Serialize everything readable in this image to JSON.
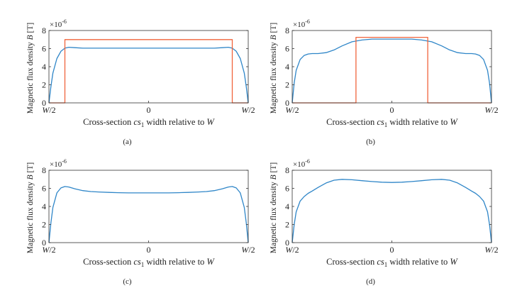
{
  "colors": {
    "blue": "#2F86C8",
    "orange": "#F0643C",
    "axis": "#333333"
  },
  "chart_data": [
    {
      "type": "line",
      "caption": "(a)",
      "ylabel": {
        "pre": "Magnetic flux density ",
        "var": "B",
        "post": " [T]"
      },
      "yscale_label": "×10",
      "yscale_exp": "-6",
      "xlabel": {
        "pre": "Cross-section ",
        "var": "cs",
        "sub": "1",
        "post": " width relative to ",
        "var2": "W"
      },
      "xticks": [
        "W/2",
        "0",
        "W/2"
      ],
      "xlim": [
        -0.5,
        0.5
      ],
      "yticks": [
        "0",
        "2",
        "4",
        "6",
        "8"
      ],
      "ylim": [
        0,
        8
      ],
      "grid": false,
      "series": [
        {
          "color": "blue",
          "x": [
            -0.5,
            -0.49,
            -0.48,
            -0.46,
            -0.44,
            -0.42,
            -0.4,
            -0.37,
            -0.33,
            -0.29,
            -0.25,
            -0.2,
            -0.15,
            -0.1,
            -0.05,
            0,
            0.05,
            0.1,
            0.15,
            0.2,
            0.25,
            0.29,
            0.33,
            0.37,
            0.4,
            0.42,
            0.44,
            0.46,
            0.48,
            0.49,
            0.5
          ],
          "y": [
            0,
            1.8,
            3.3,
            4.9,
            5.7,
            6.05,
            6.15,
            6.1,
            6.05,
            6.05,
            6.05,
            6.05,
            6.05,
            6.05,
            6.05,
            6.05,
            6.05,
            6.05,
            6.05,
            6.05,
            6.05,
            6.05,
            6.05,
            6.1,
            6.15,
            6.05,
            5.7,
            4.9,
            3.3,
            1.8,
            0
          ]
        },
        {
          "color": "orange",
          "x": [
            -0.5,
            -0.42,
            -0.42,
            0.42,
            0.42,
            0.5
          ],
          "y": [
            0,
            0,
            7,
            7,
            0,
            0
          ]
        }
      ]
    },
    {
      "type": "line",
      "caption": "(b)",
      "ylabel": {
        "pre": "Magnetic flux density ",
        "var": "B",
        "post": " [T]"
      },
      "yscale_label": "×10",
      "yscale_exp": "-6",
      "xlabel": {
        "pre": "Cross-section ",
        "var": "cs",
        "sub": "1",
        "post": " width relative to ",
        "var2": "W"
      },
      "xticks": [
        "W/2",
        "0",
        "W/2"
      ],
      "xlim": [
        -0.5,
        0.5
      ],
      "yticks": [
        "0",
        "2",
        "4",
        "6",
        "8"
      ],
      "ylim": [
        0,
        8
      ],
      "grid": false,
      "series": [
        {
          "color": "blue",
          "x": [
            -0.5,
            -0.49,
            -0.48,
            -0.46,
            -0.44,
            -0.42,
            -0.4,
            -0.37,
            -0.33,
            -0.29,
            -0.25,
            -0.2,
            -0.15,
            -0.1,
            -0.05,
            0,
            0.05,
            0.1,
            0.15,
            0.2,
            0.25,
            0.29,
            0.33,
            0.37,
            0.4,
            0.42,
            0.44,
            0.46,
            0.48,
            0.49,
            0.5
          ],
          "y": [
            0,
            2.2,
            3.6,
            4.8,
            5.25,
            5.4,
            5.45,
            5.45,
            5.55,
            5.85,
            6.3,
            6.75,
            6.95,
            7.05,
            7.05,
            7.05,
            7.05,
            7.05,
            6.95,
            6.75,
            6.3,
            5.85,
            5.55,
            5.45,
            5.45,
            5.4,
            5.25,
            4.8,
            3.6,
            2.2,
            0
          ]
        },
        {
          "color": "orange",
          "x": [
            -0.5,
            -0.18,
            -0.18,
            0.18,
            0.18,
            0.5
          ],
          "y": [
            0,
            0,
            7.25,
            7.25,
            0,
            0
          ]
        }
      ]
    },
    {
      "type": "line",
      "caption": "(c)",
      "ylabel": {
        "pre": "Magnetic flux density ",
        "var": "B",
        "post": " [T]"
      },
      "yscale_label": "×10",
      "yscale_exp": "-6",
      "xlabel": {
        "pre": "Cross-section ",
        "var": "cs",
        "sub": "1",
        "post": " width relative to ",
        "var2": "W"
      },
      "xticks": [
        "W/2",
        "0",
        "W/2"
      ],
      "xlim": [
        -0.5,
        0.5
      ],
      "yticks": [
        "0",
        "2",
        "4",
        "6",
        "8"
      ],
      "ylim": [
        0,
        8
      ],
      "grid": false,
      "series": [
        {
          "color": "blue",
          "x": [
            -0.5,
            -0.49,
            -0.48,
            -0.46,
            -0.44,
            -0.42,
            -0.4,
            -0.37,
            -0.33,
            -0.29,
            -0.25,
            -0.2,
            -0.15,
            -0.1,
            -0.05,
            0,
            0.05,
            0.1,
            0.15,
            0.2,
            0.25,
            0.29,
            0.33,
            0.37,
            0.4,
            0.42,
            0.44,
            0.46,
            0.48,
            0.49,
            0.5
          ],
          "y": [
            0,
            2.2,
            3.9,
            5.5,
            6.05,
            6.2,
            6.15,
            5.95,
            5.75,
            5.65,
            5.6,
            5.55,
            5.52,
            5.5,
            5.5,
            5.5,
            5.5,
            5.5,
            5.52,
            5.55,
            5.6,
            5.65,
            5.75,
            5.95,
            6.15,
            6.2,
            6.05,
            5.5,
            3.9,
            2.2,
            0
          ]
        }
      ]
    },
    {
      "type": "line",
      "caption": "(d)",
      "ylabel": {
        "pre": "Magnetic flux density ",
        "var": "B",
        "post": " [T]"
      },
      "yscale_label": "×10",
      "yscale_exp": "-6",
      "xlabel": {
        "pre": "Cross-section ",
        "var": "cs",
        "sub": "1",
        "post": " width relative to ",
        "var2": "W"
      },
      "xticks": [
        "W/2",
        "0",
        "W/2"
      ],
      "xlim": [
        -0.5,
        0.5
      ],
      "yticks": [
        "0",
        "2",
        "4",
        "6",
        "8"
      ],
      "ylim": [
        0,
        8
      ],
      "grid": false,
      "series": [
        {
          "color": "blue",
          "x": [
            -0.5,
            -0.49,
            -0.48,
            -0.46,
            -0.44,
            -0.42,
            -0.4,
            -0.37,
            -0.33,
            -0.29,
            -0.25,
            -0.2,
            -0.15,
            -0.1,
            -0.05,
            0,
            0.05,
            0.1,
            0.15,
            0.2,
            0.25,
            0.29,
            0.33,
            0.37,
            0.4,
            0.42,
            0.44,
            0.46,
            0.48,
            0.49,
            0.5
          ],
          "y": [
            0,
            2.0,
            3.4,
            4.6,
            5.1,
            5.45,
            5.7,
            6.1,
            6.6,
            6.9,
            7.0,
            6.95,
            6.85,
            6.75,
            6.68,
            6.65,
            6.68,
            6.75,
            6.85,
            6.95,
            7.0,
            6.9,
            6.6,
            6.1,
            5.7,
            5.45,
            5.1,
            4.6,
            3.4,
            2.0,
            0
          ]
        }
      ]
    }
  ]
}
